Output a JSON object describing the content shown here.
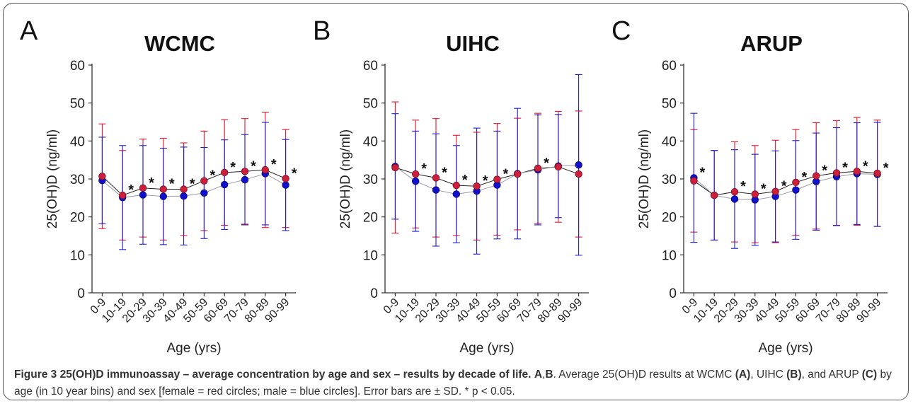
{
  "figure": {
    "caption": {
      "label": "Figure 3",
      "title": "25(OH)D immunoassay – average concentration by age and sex – results by decade of life.",
      "panels_ref": "A",
      "panels_sep": ",",
      "panels_ref2": "B",
      "body_1": ". Average 25(OH)D results at WCMC ",
      "ref_a": "(A)",
      "body_2": ", UIHC ",
      "ref_b": "(B)",
      "body_3": ", and ARUP ",
      "ref_c": "(C)",
      "body_4": " by age (in 10 year bins) and sex [female = red circles; male = blue circles]. Error bars are ± SD. * p < 0.05."
    },
    "colors": {
      "female": "#e8152d",
      "male": "#1c1cd6",
      "female_fill": "#cc1f3c",
      "male_fill": "#1111cc",
      "line": "#222222"
    }
  },
  "chart_data": [
    {
      "type": "scatter",
      "panel": "A",
      "title": "WCMC",
      "xlabel": "Age (yrs)",
      "ylabel": "25(OH)D (ng/ml)",
      "ylim": [
        0,
        60
      ],
      "yticks": [
        0,
        10,
        20,
        30,
        40,
        50,
        60
      ],
      "categories": [
        "0-9",
        "10-19",
        "20-29",
        "30-39",
        "40-49",
        "50-59",
        "60-69",
        "70-79",
        "80-89",
        "90-99"
      ],
      "series": [
        {
          "values": [
            30.7,
            25.7,
            27.6,
            27.3,
            27.3,
            29.5,
            31.7,
            32.0,
            32.4,
            30.1
          ],
          "sd": [
            13.8,
            11.8,
            12.9,
            13.4,
            12.2,
            13.1,
            13.9,
            13.9,
            15.2,
            12.9
          ]
        },
        {
          "values": [
            29.6,
            25.1,
            25.8,
            25.4,
            25.5,
            26.3,
            28.5,
            29.8,
            31.4,
            28.4
          ],
          "sd": [
            11.4,
            13.7,
            13.0,
            12.7,
            12.9,
            12.0,
            11.8,
            11.9,
            13.5,
            12.0
          ]
        }
      ],
      "significant": [
        "10-19",
        "20-29",
        "30-39",
        "40-49",
        "50-59",
        "60-69",
        "70-79",
        "80-89",
        "90-99"
      ]
    },
    {
      "type": "scatter",
      "panel": "B",
      "title": "UIHC",
      "xlabel": "Age (yrs)",
      "ylabel": "25(OH)D (ng/ml)",
      "ylim": [
        0,
        60
      ],
      "yticks": [
        0,
        10,
        20,
        30,
        40,
        50,
        60
      ],
      "categories": [
        "0-9",
        "10-19",
        "20-29",
        "30-39",
        "40-49",
        "50-59",
        "60-69",
        "70-79",
        "80-89",
        "90-99"
      ],
      "series": [
        {
          "values": [
            33.0,
            31.3,
            30.3,
            28.3,
            28.1,
            29.9,
            31.3,
            32.8,
            33.2,
            31.3
          ],
          "sd": [
            17.3,
            14.2,
            15.6,
            13.2,
            14.2,
            14.7,
            14.7,
            14.5,
            14.6,
            16.6
          ]
        },
        {
          "values": [
            33.3,
            29.4,
            27.1,
            26.0,
            26.8,
            28.4,
            31.4,
            32.4,
            33.4,
            33.7
          ],
          "sd": [
            13.9,
            13.2,
            14.8,
            12.8,
            16.6,
            14.2,
            17.2,
            14.5,
            13.6,
            23.8
          ]
        }
      ],
      "significant": [
        "10-19",
        "20-29",
        "30-39",
        "40-49",
        "50-59",
        "70-79"
      ]
    },
    {
      "type": "scatter",
      "panel": "C",
      "title": "ARUP",
      "xlabel": "Age (yrs)",
      "ylabel": "25(OH)D (ng/ml)",
      "ylim": [
        0,
        60
      ],
      "yticks": [
        0,
        10,
        20,
        30,
        40,
        50,
        60
      ],
      "categories": [
        "0-9",
        "10-19",
        "20-29",
        "30-39",
        "40-49",
        "50-59",
        "60-69",
        "70-79",
        "80-89",
        "90-99"
      ],
      "series": [
        {
          "values": [
            29.5,
            25.7,
            26.6,
            26.0,
            26.7,
            29.1,
            30.8,
            31.6,
            32.0,
            31.5
          ],
          "sd": [
            13.5,
            11.8,
            13.2,
            12.8,
            13.5,
            13.9,
            14.0,
            13.8,
            14.2,
            14.0
          ]
        },
        {
          "values": [
            30.3,
            25.7,
            24.7,
            24.5,
            25.4,
            27.1,
            29.3,
            30.6,
            31.4,
            31.2
          ],
          "sd": [
            17.0,
            11.8,
            13.0,
            12.0,
            12.0,
            13.0,
            12.8,
            12.9,
            13.4,
            13.7
          ]
        }
      ],
      "significant": [
        "0-9",
        "20-29",
        "30-39",
        "40-49",
        "50-59",
        "60-69",
        "70-79",
        "80-89",
        "90-99"
      ]
    }
  ]
}
